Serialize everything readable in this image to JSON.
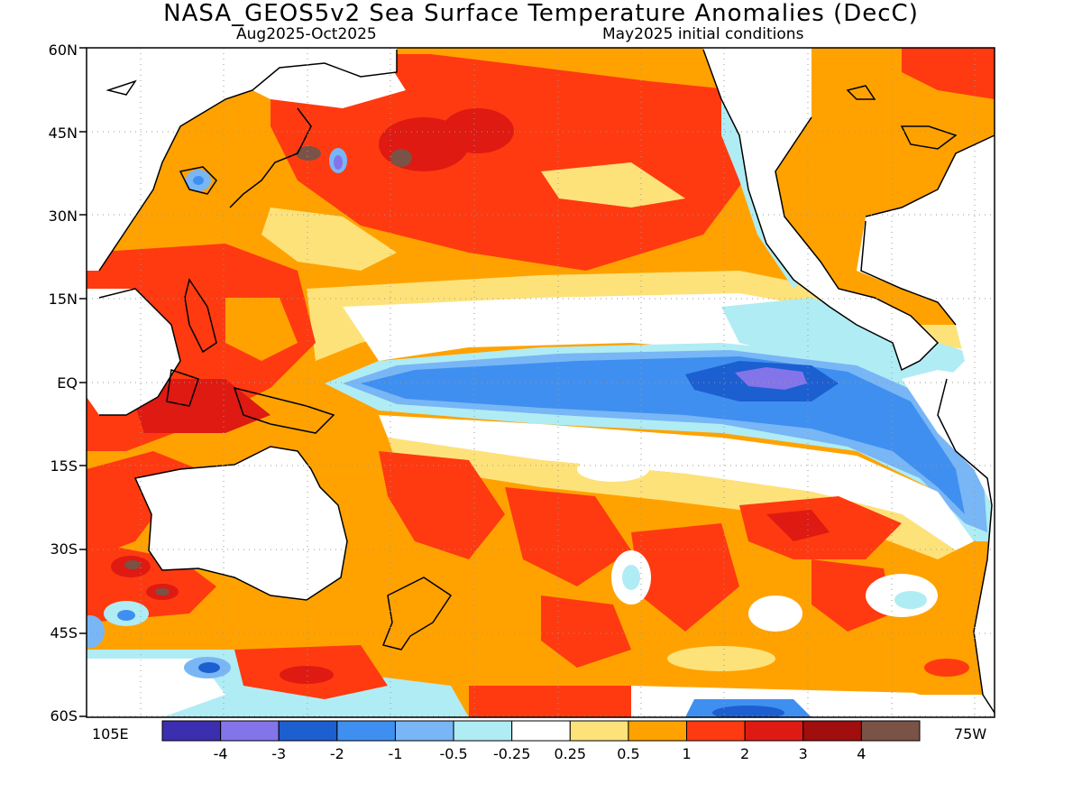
{
  "title": "NASA_GEOS5v2 Sea Surface Temperature Anomalies (DecC)",
  "subtitle_left": "Aug2025-Oct2025",
  "subtitle_right": "May2025 initial conditions",
  "y_axis_labels": [
    "60N",
    "45N",
    "30N",
    "15N",
    "EQ",
    "15S",
    "30S",
    "45S",
    "60S"
  ],
  "x_axis_labels": {
    "left": "105E",
    "right": "75W"
  },
  "colorbar": {
    "colors": [
      "#3b2fb0",
      "#8474ea",
      "#1c5fd0",
      "#3f8ff0",
      "#78b6f6",
      "#b0ecf4",
      "#ffffff",
      "#fde27a",
      "#ffa200",
      "#ff3a10",
      "#de1a12",
      "#a00e0e",
      "#7a5246"
    ],
    "tick_labels": [
      "-4",
      "-3",
      "-2",
      "-1",
      "-0.5",
      "-0.25",
      "0.25",
      "0.5",
      "1",
      "2",
      "3",
      "4"
    ]
  }
}
